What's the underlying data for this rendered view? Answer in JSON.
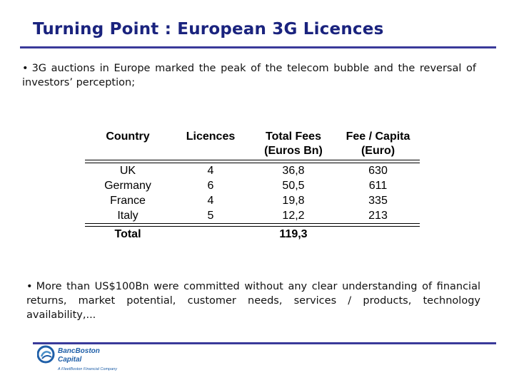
{
  "slide": {
    "title": "Turning Point : European 3G Licences",
    "bullet_marker": "•",
    "bullet_1": "3G auctions in Europe marked the peak of the telecom bubble and the reversal of investors’ perception;",
    "bullet_2": "More than US$100Bn were committed without any clear understanding of financial returns, market potential, customer needs, services / products, technology availability,..."
  },
  "table": {
    "headers": {
      "country": "Country",
      "licences": "Licences",
      "fees_line1": "Total Fees",
      "fees_line2": "(Euros Bn)",
      "capita_line1": "Fee / Capita",
      "capita_line2": "(Euro)"
    },
    "rows": [
      {
        "country": "UK",
        "licences": "4",
        "fees": "36,8",
        "capita": "630"
      },
      {
        "country": "Germany",
        "licences": "6",
        "fees": "50,5",
        "capita": "611"
      },
      {
        "country": "France",
        "licences": "4",
        "fees": "19,8",
        "capita": "335"
      },
      {
        "country": "Italy",
        "licences": "5",
        "fees": "12,2",
        "capita": "213"
      }
    ],
    "total": {
      "label": "Total",
      "fees": "119,3"
    }
  },
  "footer": {
    "logo_line1": "BancBoston",
    "logo_line2": "Capital",
    "logo_tagline": "A FleetBoston Financial Company",
    "brand_color": "#1f5fa8",
    "rule_color": "#3a3a9a",
    "title_color": "#1a237e"
  }
}
